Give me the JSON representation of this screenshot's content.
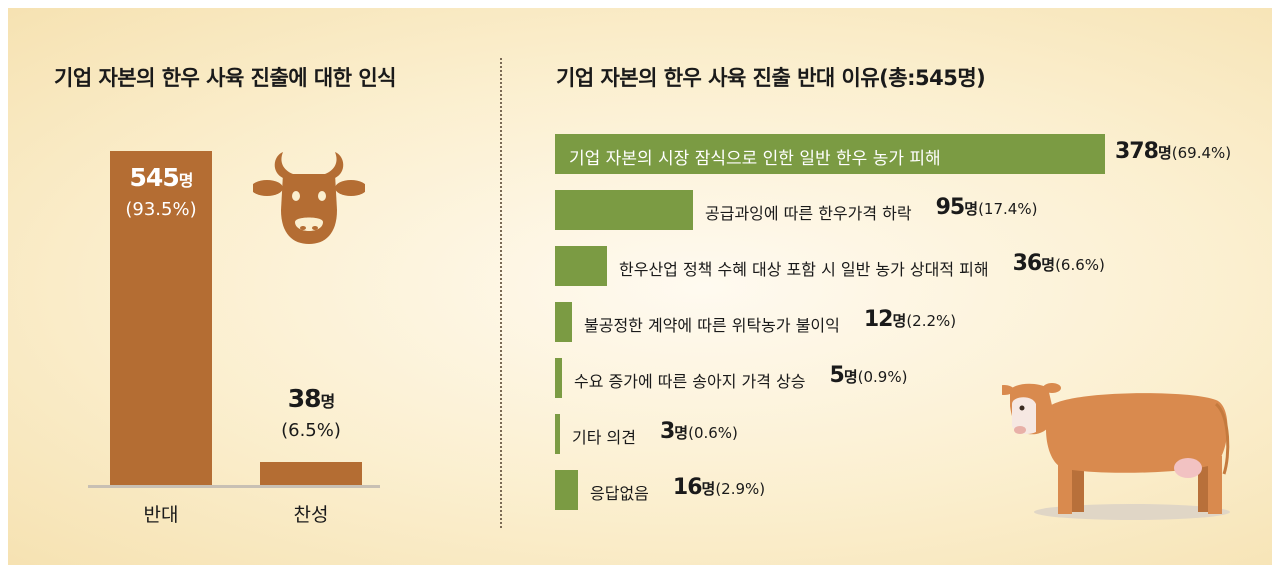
{
  "left_chart": {
    "title": "기업 자본의 한우 사육 진출에 대한 인식"
  },
  "right_chart": {
    "title": "기업 자본의 한우 사육 진출 반대 이유(총:545명)"
  },
  "colors": {
    "bar_brown": "#b46d33",
    "bar_green": "#7b9b43",
    "background": "#fbefcf"
  },
  "icons": {
    "cow_head": "cow-head-icon",
    "cow": "cow-illustration"
  },
  "chart_data": [
    {
      "type": "bar",
      "orientation": "vertical",
      "title": "기업 자본의 한우 사육 진출에 대한 인식",
      "categories": [
        "반대",
        "찬성"
      ],
      "values": [
        545,
        38
      ],
      "count_labels": [
        "545",
        "38"
      ],
      "unit": "명",
      "percent_labels": [
        "(93.5%)",
        "(6.5%)"
      ],
      "ylim": [
        0,
        545
      ],
      "grid": false
    },
    {
      "type": "bar",
      "orientation": "horizontal",
      "title": "기업 자본의 한우 사육 진출 반대 이유(총:545명)",
      "categories": [
        "기업 자본의 시장 잠식으로 인한 일반 한우 농가 피해",
        "공급과잉에 따른 한우가격 하락",
        "한우산업 정책 수혜 대상 포함 시 일반 농가 상대적 피해",
        "불공정한 계약에 따른 위탁농가 불이익",
        "수요 증가에 따른 송아지 가격 상승",
        "기타 의견",
        "응답없음"
      ],
      "values": [
        378,
        95,
        36,
        12,
        5,
        3,
        16
      ],
      "count_labels": [
        "378",
        "95",
        "36",
        "12",
        "5",
        "3",
        "16"
      ],
      "unit": "명",
      "percent_labels": [
        "(69.4%)",
        "(17.4%)",
        "(6.6%)",
        "(2.2%)",
        "(0.9%)",
        "(0.6%)",
        "(2.9%)"
      ],
      "xlim": [
        0,
        378
      ],
      "grid": false
    }
  ]
}
